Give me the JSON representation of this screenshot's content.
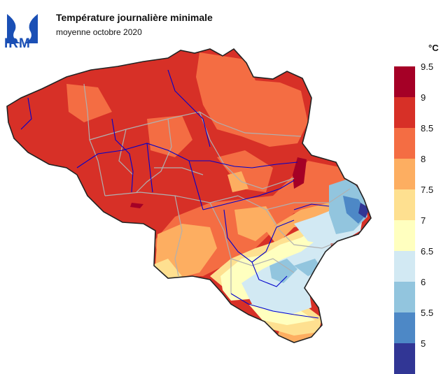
{
  "header": {
    "logo_text": "IRM",
    "title": "Température journalière minimale",
    "subtitle": "moyenne octobre 2020"
  },
  "legend": {
    "unit": "°C",
    "ticks": [
      "9.5",
      "9",
      "8.5",
      "8",
      "7.5",
      "7",
      "6.5",
      "6",
      "5.5",
      "5"
    ],
    "classes": [
      {
        "range": "9 – 9.5",
        "color": "#a50026"
      },
      {
        "range": "8.5 – 9",
        "color": "#d73027"
      },
      {
        "range": "8 – 8.5",
        "color": "#f46d43"
      },
      {
        "range": "7.5 – 8",
        "color": "#fdae61"
      },
      {
        "range": "7 – 7.5",
        "color": "#fee090"
      },
      {
        "range": "6.5 – 7",
        "color": "#ffffbf"
      },
      {
        "range": "6 – 6.5",
        "color": "#d2e9f3"
      },
      {
        "range": "5.5 – 6",
        "color": "#92c5de"
      },
      {
        "range": "5 – 5.5",
        "color": "#4d88c6"
      },
      {
        "range": "< 5",
        "color": "#313695"
      }
    ]
  },
  "colors": {
    "border": "#222222",
    "provinces": "#b0b0b0",
    "rivers": "#0000cc"
  }
}
